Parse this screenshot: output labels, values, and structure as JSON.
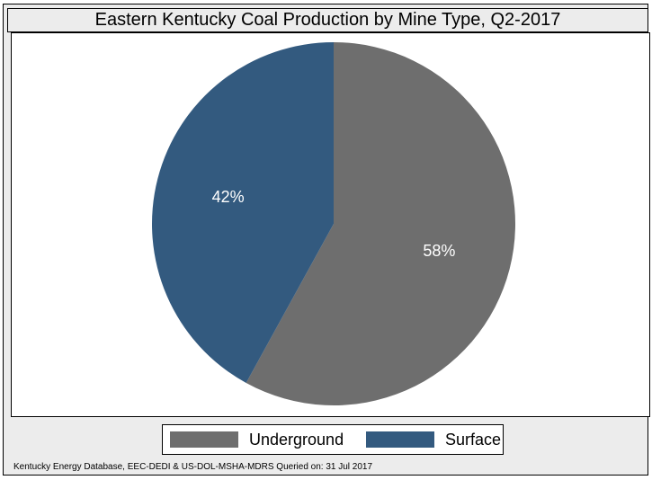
{
  "chart_data": {
    "type": "pie",
    "title": "Eastern Kentucky Coal Production by Mine Type, Q2-2017",
    "slices": [
      {
        "name": "Underground",
        "value": 58,
        "label": "58%",
        "color": "#6e6e6e"
      },
      {
        "name": "Surface",
        "value": 42,
        "label": "42%",
        "color": "#335a7f"
      }
    ],
    "start_angle_deg": 0,
    "direction": "clockwise",
    "legend_position": "bottom",
    "source": "Kentucky Energy Database, EEC-DEDI & US-DOL-MSHA-MDRS Queried on: 31 Jul 2017"
  },
  "colors": {
    "frame_background": "#ececec",
    "plot_background": "#ffffff",
    "label_text": "#ffffff"
  }
}
